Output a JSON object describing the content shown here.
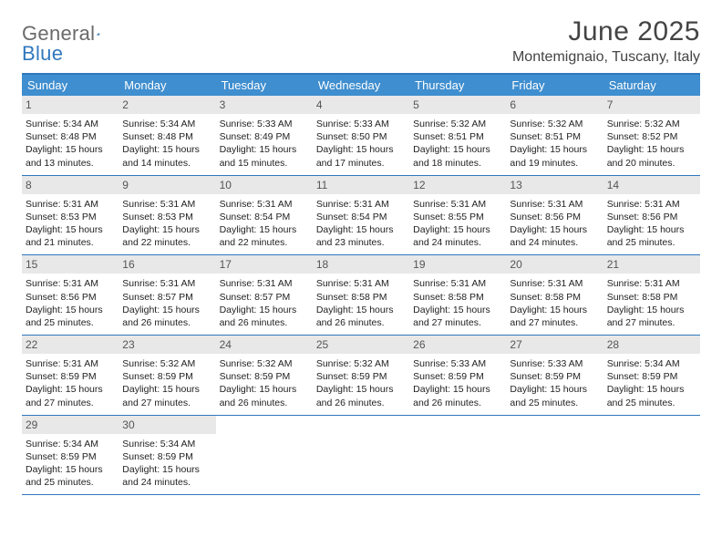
{
  "logo": {
    "general": "General",
    "blue": "Blue"
  },
  "title": "June 2025",
  "location": "Montemignaio, Tuscany, Italy",
  "colors": {
    "brand_blue": "#2f78bd",
    "header_bg": "#3f8ecf",
    "daynum_bg": "#e8e8e8",
    "text_muted": "#6a6a6a",
    "text_body": "#222222",
    "background": "#ffffff"
  },
  "day_headers": [
    "Sunday",
    "Monday",
    "Tuesday",
    "Wednesday",
    "Thursday",
    "Friday",
    "Saturday"
  ],
  "weeks": [
    [
      {
        "n": "1",
        "sr": "5:34 AM",
        "ss": "8:48 PM",
        "dl": "15 hours and 13 minutes."
      },
      {
        "n": "2",
        "sr": "5:34 AM",
        "ss": "8:48 PM",
        "dl": "15 hours and 14 minutes."
      },
      {
        "n": "3",
        "sr": "5:33 AM",
        "ss": "8:49 PM",
        "dl": "15 hours and 15 minutes."
      },
      {
        "n": "4",
        "sr": "5:33 AM",
        "ss": "8:50 PM",
        "dl": "15 hours and 17 minutes."
      },
      {
        "n": "5",
        "sr": "5:32 AM",
        "ss": "8:51 PM",
        "dl": "15 hours and 18 minutes."
      },
      {
        "n": "6",
        "sr": "5:32 AM",
        "ss": "8:51 PM",
        "dl": "15 hours and 19 minutes."
      },
      {
        "n": "7",
        "sr": "5:32 AM",
        "ss": "8:52 PM",
        "dl": "15 hours and 20 minutes."
      }
    ],
    [
      {
        "n": "8",
        "sr": "5:31 AM",
        "ss": "8:53 PM",
        "dl": "15 hours and 21 minutes."
      },
      {
        "n": "9",
        "sr": "5:31 AM",
        "ss": "8:53 PM",
        "dl": "15 hours and 22 minutes."
      },
      {
        "n": "10",
        "sr": "5:31 AM",
        "ss": "8:54 PM",
        "dl": "15 hours and 22 minutes."
      },
      {
        "n": "11",
        "sr": "5:31 AM",
        "ss": "8:54 PM",
        "dl": "15 hours and 23 minutes."
      },
      {
        "n": "12",
        "sr": "5:31 AM",
        "ss": "8:55 PM",
        "dl": "15 hours and 24 minutes."
      },
      {
        "n": "13",
        "sr": "5:31 AM",
        "ss": "8:56 PM",
        "dl": "15 hours and 24 minutes."
      },
      {
        "n": "14",
        "sr": "5:31 AM",
        "ss": "8:56 PM",
        "dl": "15 hours and 25 minutes."
      }
    ],
    [
      {
        "n": "15",
        "sr": "5:31 AM",
        "ss": "8:56 PM",
        "dl": "15 hours and 25 minutes."
      },
      {
        "n": "16",
        "sr": "5:31 AM",
        "ss": "8:57 PM",
        "dl": "15 hours and 26 minutes."
      },
      {
        "n": "17",
        "sr": "5:31 AM",
        "ss": "8:57 PM",
        "dl": "15 hours and 26 minutes."
      },
      {
        "n": "18",
        "sr": "5:31 AM",
        "ss": "8:58 PM",
        "dl": "15 hours and 26 minutes."
      },
      {
        "n": "19",
        "sr": "5:31 AM",
        "ss": "8:58 PM",
        "dl": "15 hours and 27 minutes."
      },
      {
        "n": "20",
        "sr": "5:31 AM",
        "ss": "8:58 PM",
        "dl": "15 hours and 27 minutes."
      },
      {
        "n": "21",
        "sr": "5:31 AM",
        "ss": "8:58 PM",
        "dl": "15 hours and 27 minutes."
      }
    ],
    [
      {
        "n": "22",
        "sr": "5:31 AM",
        "ss": "8:59 PM",
        "dl": "15 hours and 27 minutes."
      },
      {
        "n": "23",
        "sr": "5:32 AM",
        "ss": "8:59 PM",
        "dl": "15 hours and 27 minutes."
      },
      {
        "n": "24",
        "sr": "5:32 AM",
        "ss": "8:59 PM",
        "dl": "15 hours and 26 minutes."
      },
      {
        "n": "25",
        "sr": "5:32 AM",
        "ss": "8:59 PM",
        "dl": "15 hours and 26 minutes."
      },
      {
        "n": "26",
        "sr": "5:33 AM",
        "ss": "8:59 PM",
        "dl": "15 hours and 26 minutes."
      },
      {
        "n": "27",
        "sr": "5:33 AM",
        "ss": "8:59 PM",
        "dl": "15 hours and 25 minutes."
      },
      {
        "n": "28",
        "sr": "5:34 AM",
        "ss": "8:59 PM",
        "dl": "15 hours and 25 minutes."
      }
    ],
    [
      {
        "n": "29",
        "sr": "5:34 AM",
        "ss": "8:59 PM",
        "dl": "15 hours and 25 minutes."
      },
      {
        "n": "30",
        "sr": "5:34 AM",
        "ss": "8:59 PM",
        "dl": "15 hours and 24 minutes."
      },
      null,
      null,
      null,
      null,
      null
    ]
  ],
  "labels": {
    "sunrise": "Sunrise:",
    "sunset": "Sunset:",
    "daylight": "Daylight:"
  }
}
